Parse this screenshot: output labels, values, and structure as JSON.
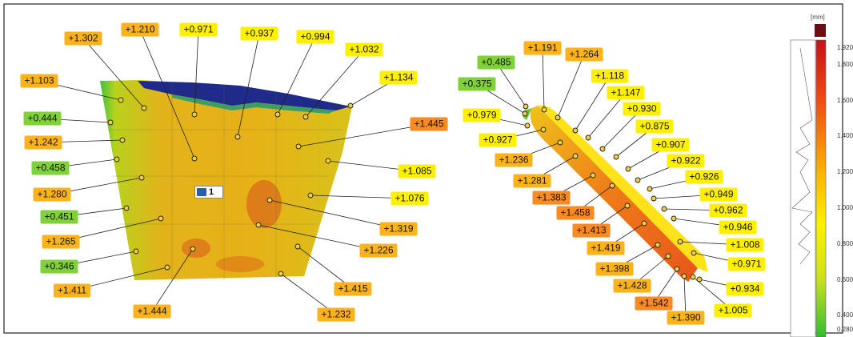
{
  "legend": {
    "unit": "[mm]",
    "ticks": [
      "1.920",
      "1.800",
      "1.600",
      "1.400",
      "1.200",
      "1.000",
      "0.800",
      "0.600",
      "0.400",
      "0.280"
    ],
    "colors": {
      "max": "#6b0d12",
      "high": "#e42a12",
      "mid": "#ffd700",
      "low": "#2fbf2f"
    }
  },
  "annotation_tag": "1",
  "left_labels": [
    "+1.302",
    "+1.210",
    "+0.971",
    "+0.937",
    "+0.994",
    "+1.032",
    "+1.134",
    "+1.103",
    "+0.444",
    "+1.445",
    "+1.242",
    "+0.458",
    "+1.085",
    "+1.280",
    "+1.076",
    "+0.451",
    "+1.319",
    "+1.265",
    "+1.226",
    "+0.346",
    "+1.415",
    "+1.411",
    "+1.444",
    "+1.232"
  ],
  "right_labels": [
    "+1.191",
    "+0.485",
    "+1.264",
    "+0.375",
    "+1.118",
    "+1.147",
    "+0.979",
    "+0.930",
    "+0.927",
    "+0.875",
    "+0.907",
    "+1.236",
    "+0.922",
    "+0.926",
    "+1.281",
    "+0.949",
    "+1.383",
    "+0.962",
    "+1.458",
    "+0.946",
    "+1.413",
    "+1.008",
    "+1.419",
    "+0.971",
    "+1.398",
    "+1.428",
    "+0.934",
    "+1.542",
    "+1.005",
    "+1.390"
  ]
}
